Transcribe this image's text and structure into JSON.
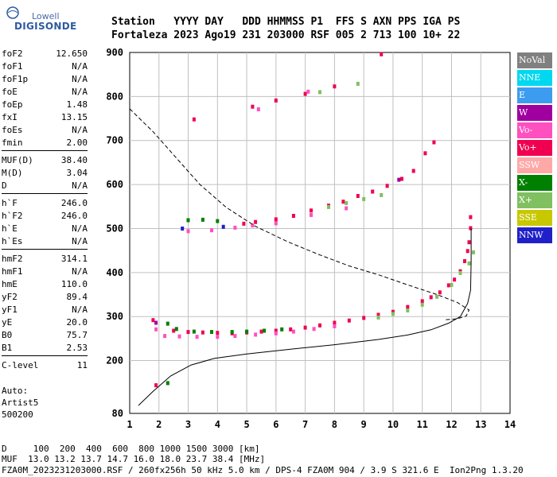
{
  "logo": {
    "line1": "Lowell",
    "line2": "DIGISONDE"
  },
  "header": {
    "row1": "Station   YYYY DAY   DDD HHMMSS P1  FFS S AXN PPS IGA PS",
    "row2": "Fortaleza 2023 Ago19 231 203000 RSF 005 2 713 100 10+ 22"
  },
  "params_groups": [
    [
      [
        "foF2",
        "12.650"
      ],
      [
        "foF1",
        "N/A"
      ],
      [
        "foF1p",
        "N/A"
      ],
      [
        "foE",
        "N/A"
      ],
      [
        "foEp",
        "1.48"
      ],
      [
        "fxI",
        "13.15"
      ],
      [
        "foEs",
        "N/A"
      ],
      [
        "fmin",
        "2.00"
      ]
    ],
    [
      [
        "MUF(D)",
        "38.40"
      ],
      [
        "M(D)",
        "3.04"
      ],
      [
        "D",
        "N/A"
      ]
    ],
    [
      [
        "h`F",
        "246.0"
      ],
      [
        "h`F2",
        "246.0"
      ],
      [
        "h`E",
        "N/A"
      ],
      [
        "h`Es",
        "N/A"
      ]
    ],
    [
      [
        "hmF2",
        "314.1"
      ],
      [
        "hmF1",
        "N/A"
      ],
      [
        "hmE",
        "110.0"
      ],
      [
        "yF2",
        "89.4"
      ],
      [
        "yF1",
        "N/A"
      ],
      [
        "yE",
        "20.0"
      ],
      [
        "B0",
        "75.7"
      ],
      [
        "B1",
        "2.53"
      ]
    ],
    [
      [
        "C-level",
        "11"
      ]
    ]
  ],
  "auto": [
    "Auto:",
    "Artist5",
    "500200"
  ],
  "legend": [
    {
      "label": "NoVal",
      "color": "#808080"
    },
    {
      "label": "NNE",
      "color": "#00d8f0"
    },
    {
      "label": "E",
      "color": "#3c9cf0"
    },
    {
      "label": "W",
      "color": "#a000a0"
    },
    {
      "label": "Vo-",
      "color": "#ff50c0"
    },
    {
      "label": "Vo+",
      "color": "#f00050"
    },
    {
      "label": "SSW",
      "color": "#ffa8a8"
    },
    {
      "label": "X-",
      "color": "#008000"
    },
    {
      "label": "X+",
      "color": "#80c060"
    },
    {
      "label": "SSE",
      "color": "#c8c800"
    },
    {
      "label": "NNW",
      "color": "#2020c8"
    }
  ],
  "footer": {
    "row1": "D     100  200  400  600  800 1000 1500 3000 [km]",
    "row2": "MUF  13.0 13.2 13.7 14.7 16.0 18.0 23.7 38.4 [MHz]",
    "row3": "FZA0M_2023231203000.RSF / 260fx256h 50 kHz 5.0 km / DPS-4 FZA0M 904 / 3.9 S 321.6 E  Ion2Png 1.3.20"
  },
  "chart_data": {
    "type": "scatter",
    "xlabel": "",
    "ylabel": "",
    "xlim": [
      1,
      14
    ],
    "ylim": [
      80,
      900
    ],
    "xticks": [
      1,
      2,
      3,
      4,
      5,
      6,
      7,
      8,
      9,
      10,
      11,
      12,
      13,
      14
    ],
    "yticks": [
      80,
      200,
      300,
      400,
      500,
      600,
      700,
      800,
      900
    ],
    "grid": true,
    "series": [
      {
        "kind": "points",
        "legend": "Vo+",
        "points": [
          [
            1.8,
            291
          ],
          [
            2.5,
            267
          ],
          [
            3,
            264
          ],
          [
            3.5,
            263
          ],
          [
            4,
            262
          ],
          [
            4.5,
            261
          ],
          [
            5,
            263
          ],
          [
            5.5,
            265
          ],
          [
            6,
            267
          ],
          [
            6.5,
            270
          ],
          [
            7,
            274
          ],
          [
            7.5,
            279
          ],
          [
            8,
            285
          ],
          [
            8.5,
            290
          ],
          [
            9,
            296
          ],
          [
            9.5,
            303
          ],
          [
            10,
            310
          ],
          [
            10.5,
            321
          ],
          [
            11,
            334
          ],
          [
            11.3,
            343
          ],
          [
            11.6,
            354
          ],
          [
            11.9,
            370
          ],
          [
            12.1,
            383
          ],
          [
            12.3,
            402
          ],
          [
            12.45,
            425
          ],
          [
            12.55,
            448
          ],
          [
            12.6,
            468
          ],
          [
            12.65,
            500
          ],
          [
            12.65,
            525
          ],
          [
            4.9,
            510
          ],
          [
            5.3,
            514
          ],
          [
            6,
            520
          ],
          [
            6.6,
            528
          ],
          [
            7.2,
            540
          ],
          [
            7.8,
            551
          ],
          [
            8.3,
            560
          ],
          [
            8.8,
            573
          ],
          [
            9.3,
            583
          ],
          [
            9.8,
            596
          ],
          [
            10.3,
            612
          ],
          [
            10.7,
            630
          ],
          [
            11.1,
            670
          ],
          [
            11.4,
            695
          ],
          [
            3.2,
            747
          ],
          [
            5.2,
            776
          ],
          [
            6,
            790
          ],
          [
            7,
            805
          ],
          [
            8,
            822
          ],
          [
            9.6,
            895
          ],
          [
            1.9,
            143
          ]
        ]
      },
      {
        "kind": "points",
        "legend": "Vo-",
        "points": [
          [
            1.9,
            270
          ],
          [
            2.2,
            255
          ],
          [
            2.7,
            254
          ],
          [
            3.3,
            253
          ],
          [
            4,
            253
          ],
          [
            4.6,
            255
          ],
          [
            5.3,
            258
          ],
          [
            6,
            261
          ],
          [
            6.6,
            265
          ],
          [
            7.3,
            271
          ],
          [
            8,
            277
          ],
          [
            3,
            493
          ],
          [
            3.8,
            495
          ],
          [
            4.6,
            501
          ],
          [
            5.2,
            506
          ],
          [
            6,
            511
          ],
          [
            7.2,
            530
          ],
          [
            8.4,
            545
          ],
          [
            5.4,
            770
          ],
          [
            7.1,
            810
          ]
        ]
      },
      {
        "kind": "points",
        "legend": "X-",
        "points": [
          [
            2.3,
            283
          ],
          [
            2.6,
            271
          ],
          [
            3.2,
            265
          ],
          [
            3.8,
            264
          ],
          [
            4.5,
            264
          ],
          [
            5,
            265
          ],
          [
            5.6,
            267
          ],
          [
            6.2,
            270
          ],
          [
            3,
            518
          ],
          [
            3.5,
            519
          ],
          [
            4,
            516
          ],
          [
            2.3,
            148
          ]
        ]
      },
      {
        "kind": "points",
        "legend": "X+",
        "points": [
          [
            9.5,
            297
          ],
          [
            10,
            305
          ],
          [
            10.5,
            313
          ],
          [
            11,
            326
          ],
          [
            11.5,
            344
          ],
          [
            12,
            371
          ],
          [
            12.3,
            398
          ],
          [
            12.6,
            420
          ],
          [
            12.75,
            445
          ],
          [
            7.8,
            548
          ],
          [
            8.4,
            557
          ],
          [
            9,
            566
          ],
          [
            9.6,
            575
          ],
          [
            7.5,
            809
          ],
          [
            8.8,
            828
          ]
        ]
      },
      {
        "kind": "points",
        "legend": "NNW",
        "points": [
          [
            2.8,
            499
          ],
          [
            4.2,
            503
          ]
        ]
      },
      {
        "kind": "points",
        "legend": "W",
        "points": [
          [
            1.9,
            285
          ],
          [
            10.2,
            610
          ]
        ]
      },
      {
        "kind": "line",
        "dash": false,
        "points": [
          [
            1.3,
            98
          ],
          [
            1.8,
            130
          ],
          [
            2.4,
            165
          ],
          [
            3.1,
            190
          ],
          [
            3.9,
            205
          ],
          [
            5,
            215
          ],
          [
            6.5,
            226
          ],
          [
            8,
            236
          ],
          [
            9.5,
            248
          ],
          [
            10.5,
            258
          ],
          [
            11.3,
            270
          ],
          [
            11.9,
            285
          ],
          [
            12.3,
            300
          ],
          [
            12.55,
            330
          ],
          [
            12.65,
            360
          ],
          [
            12.67,
            425
          ],
          [
            12.67,
            500
          ]
        ]
      },
      {
        "kind": "line",
        "dash": true,
        "points": [
          [
            1,
            772
          ],
          [
            1.8,
            720
          ],
          [
            2.6,
            660
          ],
          [
            3.4,
            600
          ],
          [
            4.3,
            548
          ],
          [
            5.3,
            505
          ],
          [
            6.4,
            470
          ],
          [
            7.5,
            440
          ],
          [
            8.5,
            415
          ],
          [
            9.5,
            395
          ],
          [
            10.5,
            372
          ],
          [
            11.5,
            350
          ],
          [
            12.2,
            332
          ],
          [
            12.6,
            315
          ],
          [
            12.5,
            301
          ],
          [
            12.2,
            295
          ],
          [
            11.8,
            293
          ]
        ]
      }
    ]
  }
}
